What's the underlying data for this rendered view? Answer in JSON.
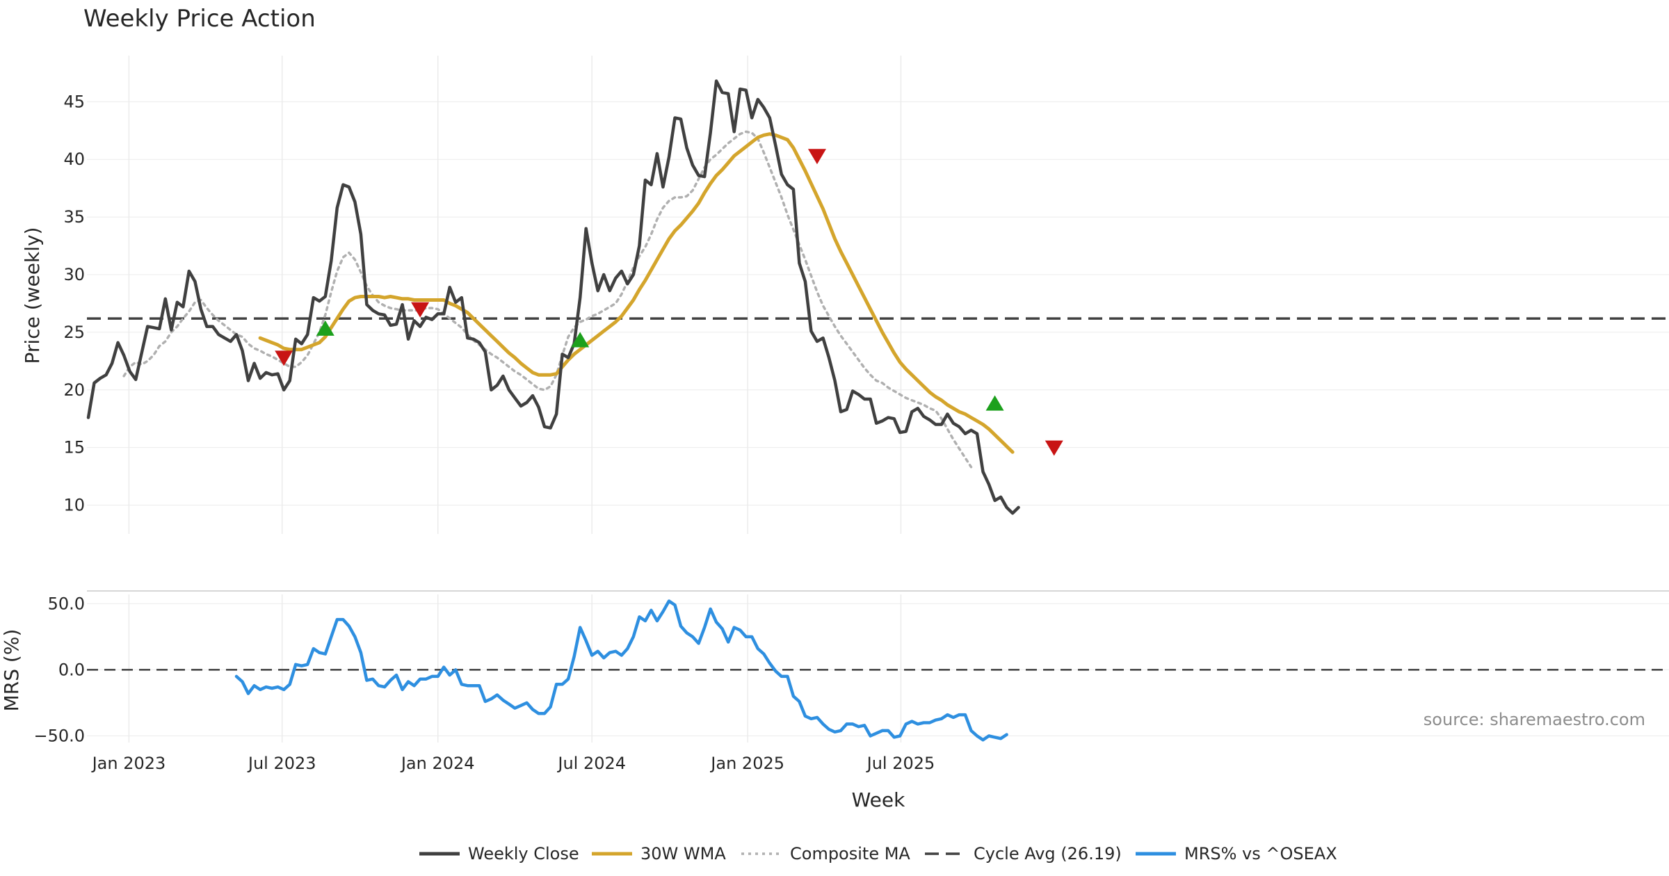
{
  "chart_data": [
    {
      "type": "line",
      "title": "Weekly Price Action",
      "ylabel": "Price (weekly)",
      "ylim": [
        7.5,
        49
      ],
      "yticks": [
        10,
        15,
        20,
        25,
        30,
        35,
        40,
        45
      ],
      "x_start": "2022-11-14",
      "x_step_days": 7,
      "reference_line": {
        "name": "Cycle Avg (26.19)",
        "value": 26.19
      },
      "series": [
        {
          "name": "Weekly Close",
          "color": "#404040",
          "start_index": 0,
          "values": [
            17.6,
            20.6,
            21.0,
            21.3,
            22.3,
            24.1,
            23.0,
            21.6,
            20.9,
            23.2,
            25.5,
            25.4,
            25.3,
            27.9,
            25.2,
            27.6,
            27.2,
            30.3,
            29.4,
            27.0,
            25.5,
            25.5,
            24.8,
            24.5,
            24.2,
            24.8,
            23.4,
            20.8,
            22.3,
            21.0,
            21.5,
            21.3,
            21.4,
            20.0,
            20.8,
            24.4,
            24.0,
            24.8,
            28.0,
            27.7,
            28.1,
            31.2,
            35.8,
            37.8,
            37.6,
            36.3,
            33.5,
            27.4,
            26.9,
            26.6,
            26.5,
            25.6,
            25.7,
            27.4,
            24.4,
            26.0,
            25.5,
            26.3,
            26.1,
            26.6,
            26.6,
            28.9,
            27.6,
            28.0,
            24.5,
            24.4,
            24.1,
            23.3,
            20.0,
            20.4,
            21.2,
            20.0,
            19.3,
            18.6,
            18.9,
            19.5,
            18.5,
            16.8,
            16.7,
            17.9,
            23.1,
            22.8,
            24.0,
            28.0,
            34.0,
            31.0,
            28.6,
            30.0,
            28.6,
            29.7,
            30.3,
            29.2,
            30.0,
            32.5,
            38.2,
            37.8,
            40.5,
            37.6,
            40.2,
            43.6,
            43.5,
            41.0,
            39.5,
            38.6,
            38.5,
            42.3,
            46.8,
            45.8,
            45.7,
            42.4,
            46.1,
            46.0,
            43.6,
            45.2,
            44.5,
            43.6,
            41.2,
            38.7,
            37.8,
            37.4,
            31.0,
            29.4,
            25.1,
            24.2,
            24.5,
            22.8,
            20.8,
            18.1,
            18.3,
            19.9,
            19.6,
            19.2,
            19.2,
            17.1,
            17.3,
            17.6,
            17.5,
            16.3,
            16.4,
            18.1,
            18.4,
            17.7,
            17.4,
            17.0,
            17.0,
            17.9,
            17.1,
            16.8,
            16.2,
            16.5,
            16.2,
            12.9,
            11.8,
            10.4,
            10.7,
            9.8,
            9.3,
            9.8
          ]
        },
        {
          "name": "30W WMA",
          "color": "#d4a52c",
          "start_index": 29,
          "values": [
            24.5,
            24.3,
            24.1,
            23.9,
            23.6,
            23.5,
            23.5,
            23.5,
            23.7,
            23.9,
            24.1,
            24.6,
            25.4,
            26.2,
            27.0,
            27.7,
            28.0,
            28.1,
            28.1,
            28.1,
            28.1,
            28.0,
            28.1,
            28.0,
            27.9,
            27.9,
            27.8,
            27.8,
            27.8,
            27.8,
            27.8,
            27.8,
            27.5,
            27.3,
            27.0,
            26.7,
            26.2,
            25.7,
            25.2,
            24.7,
            24.2,
            23.7,
            23.2,
            22.8,
            22.3,
            21.9,
            21.5,
            21.3,
            21.3,
            21.3,
            21.4,
            22.0,
            22.6,
            23.1,
            23.5,
            23.9,
            24.3,
            24.7,
            25.1,
            25.5,
            25.9,
            26.4,
            27.1,
            27.8,
            28.7,
            29.5,
            30.4,
            31.3,
            32.2,
            33.1,
            33.8,
            34.3,
            34.9,
            35.5,
            36.2,
            37.1,
            37.9,
            38.6,
            39.1,
            39.7,
            40.3,
            40.7,
            41.1,
            41.5,
            41.9,
            42.1,
            42.2,
            42.1,
            41.9,
            41.7,
            41.0,
            40.0,
            39.0,
            37.9,
            36.8,
            35.7,
            34.4,
            33.1,
            32.0,
            31.0,
            30.0,
            29.0,
            28.0,
            27.0,
            26.0,
            25.0,
            24.1,
            23.2,
            22.4,
            21.8,
            21.3,
            20.8,
            20.3,
            19.8,
            19.4,
            19.1,
            18.7,
            18.4,
            18.1,
            17.9,
            17.6,
            17.3,
            17.0,
            16.6,
            16.1,
            15.6,
            15.1,
            14.6
          ]
        },
        {
          "name": "Composite MA",
          "color": "#b0b0b0",
          "start_index": 6,
          "values": [
            21.2,
            22.0,
            22.4,
            22.2,
            22.5,
            23.0,
            23.8,
            24.2,
            25.0,
            25.5,
            26.2,
            26.8,
            27.6,
            27.8,
            27.1,
            26.5,
            26.0,
            25.6,
            25.2,
            24.8,
            24.6,
            24.0,
            23.6,
            23.4,
            23.1,
            22.9,
            22.6,
            22.3,
            22.0,
            22.0,
            22.4,
            23.0,
            24.0,
            25.0,
            26.5,
            28.5,
            30.3,
            31.5,
            31.9,
            31.3,
            30.2,
            29.0,
            28.2,
            27.6,
            27.3,
            27.1,
            27.0,
            26.9,
            26.9,
            26.9,
            26.9,
            27.1,
            27.1,
            27.0,
            26.6,
            26.2,
            25.8,
            25.4,
            24.8,
            24.3,
            23.9,
            23.5,
            23.1,
            22.8,
            22.4,
            22.0,
            21.6,
            21.3,
            20.9,
            20.5,
            20.1,
            20.0,
            20.3,
            21.3,
            23.0,
            24.6,
            25.4,
            25.9,
            26.1,
            26.4,
            26.6,
            26.9,
            27.2,
            27.5,
            28.3,
            29.4,
            30.6,
            31.6,
            32.4,
            33.5,
            34.8,
            35.8,
            36.4,
            36.7,
            36.7,
            36.8,
            37.3,
            38.3,
            39.3,
            40.0,
            40.4,
            40.9,
            41.4,
            41.8,
            42.2,
            42.4,
            42.3,
            41.8,
            40.6,
            39.3,
            38.0,
            36.7,
            35.2,
            33.9,
            32.6,
            31.3,
            29.9,
            28.5,
            27.3,
            26.4,
            25.5,
            24.7,
            24.0,
            23.3,
            22.6,
            21.9,
            21.3,
            20.8,
            20.6,
            20.2,
            19.9,
            19.6,
            19.3,
            19.1,
            18.9,
            18.7,
            18.4,
            18.2,
            17.5,
            16.6,
            15.7,
            14.9,
            14.1,
            13.3
          ]
        }
      ],
      "signals_up": [
        {
          "index": 40,
          "value": 25.3
        },
        {
          "index": 83,
          "value": 24.3
        },
        {
          "index": 153,
          "value": 18.8
        }
      ],
      "signals_down": [
        {
          "index": 33,
          "value": 22.8
        },
        {
          "index": 56,
          "value": 27.0
        },
        {
          "index": 123,
          "value": 40.3
        },
        {
          "index": 163,
          "value": 15.0
        }
      ]
    },
    {
      "type": "line",
      "xlabel": "Week",
      "ylabel": "MRS (%)",
      "ylim": [
        -55,
        57
      ],
      "yticks": [
        50.0,
        0.0,
        -50.0
      ],
      "ytick_labels": [
        "50.0",
        "0.0",
        "−50.0"
      ],
      "xtick_labels": [
        "Jan 2023",
        "Jul 2023",
        "Jan 2024",
        "Jul 2024",
        "Jan 2025",
        "Jul 2025"
      ],
      "xtick_dates": [
        "2023-01-01",
        "2023-07-01",
        "2024-01-01",
        "2024-07-01",
        "2025-01-01",
        "2025-07-01"
      ],
      "reference_line": {
        "value": 0
      },
      "series": [
        {
          "name": "MRS% vs ^OSEAX",
          "color": "#2e8fe0",
          "start_index": 25,
          "values": [
            -5,
            -9,
            -18,
            -12,
            -15,
            -13,
            -14,
            -13,
            -15,
            -11,
            4,
            3,
            4,
            16,
            13,
            12,
            25,
            38,
            38,
            33,
            25,
            13,
            -8,
            -7,
            -12,
            -13,
            -8,
            -4,
            -15,
            -9,
            -12,
            -7,
            -7,
            -5,
            -5,
            2,
            -4,
            0,
            -11,
            -12,
            -12,
            -12,
            -24,
            -22,
            -19,
            -23,
            -26,
            -29,
            -27,
            -25,
            -30,
            -33,
            -33,
            -28,
            -11,
            -11,
            -7,
            10,
            32,
            22,
            11,
            14,
            9,
            13,
            14,
            11,
            16,
            25,
            40,
            37,
            45,
            37,
            44,
            52,
            49,
            33,
            28,
            25,
            20,
            32,
            46,
            36,
            31,
            21,
            32,
            30,
            25,
            25,
            16,
            12,
            5,
            -1,
            -5,
            -5,
            -20,
            -24,
            -35,
            -37,
            -36,
            -41,
            -45,
            -47,
            -46,
            -41,
            -41,
            -43,
            -42,
            -50,
            -48,
            -46,
            -46,
            -51,
            -50,
            -41,
            -39,
            -41,
            -40,
            -40,
            -38,
            -37,
            -34,
            -36,
            -34,
            -34,
            -46,
            -50,
            -53,
            -50,
            -51,
            -52,
            -49
          ]
        }
      ]
    }
  ],
  "legend": [
    {
      "label": "Weekly Close",
      "style": "solid",
      "color": "#404040"
    },
    {
      "label": "30W WMA",
      "style": "solid",
      "color": "#d4a52c"
    },
    {
      "label": "Composite MA",
      "style": "dotted",
      "color": "#b0b0b0"
    },
    {
      "label": "Cycle Avg (26.19)",
      "style": "dashed",
      "color": "#404040"
    },
    {
      "label": "MRS% vs ^OSEAX",
      "style": "solid",
      "color": "#2e8fe0"
    }
  ],
  "source_label": "source: sharemaestro.com",
  "colors": {
    "signal_up": "#1ca01c",
    "signal_down": "#c81414",
    "grid": "#ebebeb"
  }
}
